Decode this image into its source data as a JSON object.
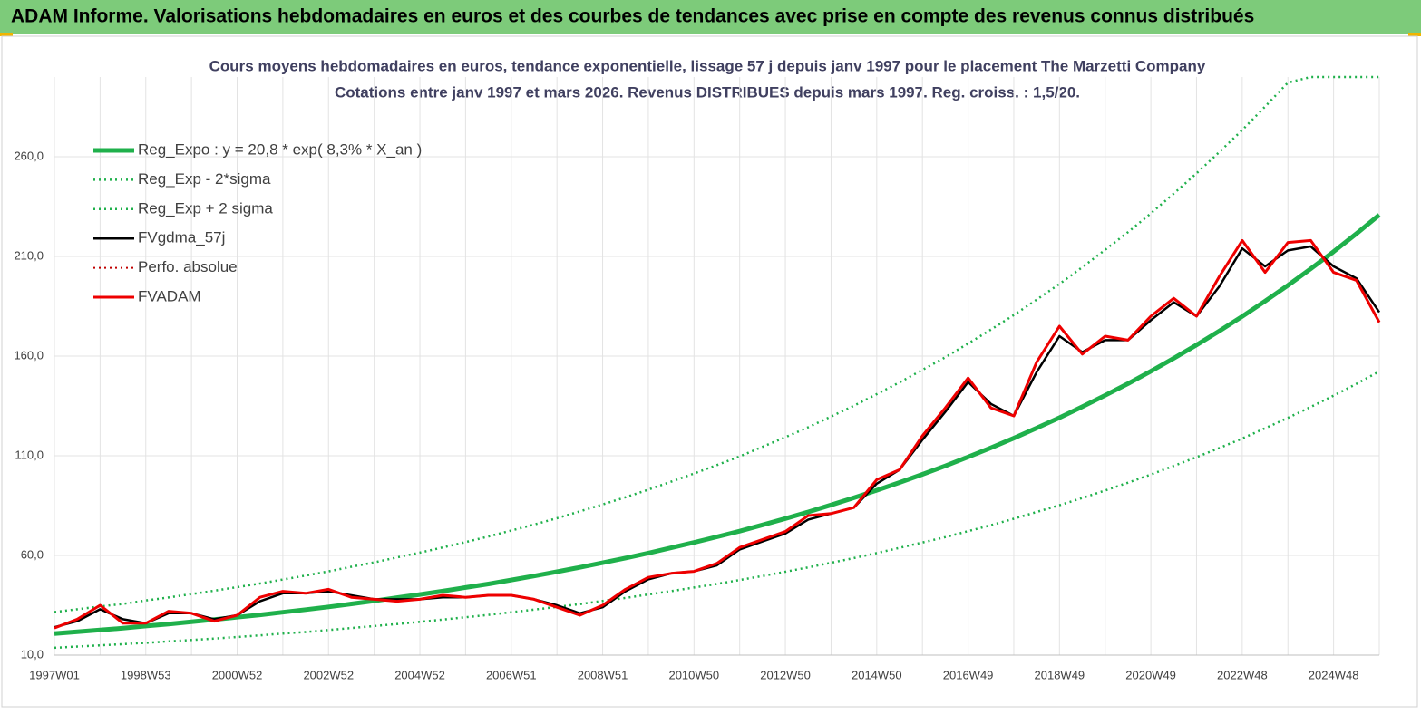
{
  "header": {
    "title": "ADAM Informe. Valorisations hebdomadaires en euros et des courbes de tendances avec prise en compte des revenus connus distribués"
  },
  "chart_data": {
    "type": "line",
    "title": "Cours moyens hebdomadaires en euros, tendance exponentielle, lissage 57 j depuis janv 1997 pour le placement The Marzetti Company",
    "subtitle": "Cotations entre janv 1997 et mars 2026. Revenus DISTRIBUES depuis mars 1997. Reg. croiss. : 1,5/20.",
    "categories": [
      "1997W01",
      null,
      null,
      null,
      "1998W53",
      null,
      null,
      null,
      "2000W52",
      null,
      null,
      null,
      "2002W52",
      null,
      null,
      null,
      "2004W52",
      null,
      null,
      null,
      "2006W51",
      null,
      null,
      null,
      "2008W51",
      null,
      null,
      null,
      "2010W50",
      null,
      null,
      null,
      "2012W50",
      null,
      null,
      null,
      "2014W50",
      null,
      null,
      null,
      "2016W49",
      null,
      null,
      null,
      "2018W49",
      null,
      null,
      null,
      "2020W49",
      null,
      null,
      null,
      "2022W48",
      null,
      null,
      null,
      "2024W48",
      null,
      null
    ],
    "ylim": [
      10,
      300
    ],
    "yticks": [
      {
        "value": 10,
        "label": "10,0"
      },
      {
        "value": 60,
        "label": "60,0"
      },
      {
        "value": 110,
        "label": "110,0"
      },
      {
        "value": 160,
        "label": "160,0"
      },
      {
        "value": 210,
        "label": "210,0"
      },
      {
        "value": 260,
        "label": "260,0"
      }
    ],
    "grid": true,
    "legend": "upper left",
    "series": [
      {
        "name": "Reg_Expo : y = 20,8 * exp( 8,3% *  X_an )",
        "color": "#1fb04b",
        "style": "solid",
        "width": 5,
        "values": [
          20.8,
          21.7,
          22.6,
          23.5,
          24.6,
          25.6,
          26.7,
          27.8,
          29.0,
          30.2,
          31.5,
          32.8,
          34.2,
          35.7,
          37.2,
          38.8,
          40.4,
          42.1,
          43.9,
          45.7,
          47.7,
          49.7,
          51.8,
          54.0,
          56.3,
          58.7,
          61.2,
          63.8,
          66.5,
          69.3,
          72.2,
          75.3,
          78.5,
          81.8,
          85.3,
          88.9,
          92.7,
          96.6,
          100.7,
          104.9,
          109.4,
          114.0,
          118.8,
          123.9,
          129.1,
          134.6,
          140.3,
          146.2,
          152.4,
          158.9,
          165.6,
          172.6,
          179.9,
          187.6,
          195.5,
          203.8,
          212.4,
          221.4,
          230.8
        ]
      },
      {
        "name": "Reg_Exp - 2*sigma",
        "color": "#1fb04b",
        "style": "dotted",
        "width": 2.5,
        "values": [
          13.7,
          14.3,
          14.9,
          15.5,
          16.2,
          16.9,
          17.6,
          18.3,
          19.1,
          19.9,
          20.8,
          21.6,
          22.6,
          23.6,
          24.6,
          25.6,
          26.7,
          27.8,
          29.0,
          30.2,
          31.5,
          32.8,
          34.2,
          35.6,
          37.2,
          38.7,
          40.4,
          42.1,
          43.9,
          45.7,
          47.7,
          49.7,
          51.8,
          54.0,
          56.3,
          58.7,
          61.2,
          63.8,
          66.5,
          69.2,
          72.2,
          75.2,
          78.4,
          81.8,
          85.2,
          88.8,
          92.6,
          96.5,
          100.6,
          104.9,
          109.3,
          113.9,
          118.7,
          123.8,
          129.0,
          134.5,
          140.2,
          146.1,
          152.3
        ]
      },
      {
        "name": "Reg_Exp + 2 sigma",
        "color": "#1fb04b",
        "style": "dotted",
        "width": 2.5,
        "values": [
          31.6,
          33.0,
          34.4,
          35.7,
          37.4,
          38.9,
          40.6,
          42.3,
          44.1,
          45.9,
          47.9,
          49.9,
          52.0,
          54.3,
          56.5,
          59.0,
          61.4,
          64.0,
          66.7,
          69.5,
          72.5,
          75.5,
          78.7,
          82.1,
          85.6,
          89.2,
          93.0,
          97.0,
          101.1,
          105.3,
          109.7,
          114.5,
          119.3,
          124.3,
          129.7,
          135.1,
          140.9,
          146.8,
          153.1,
          159.4,
          166.3,
          173.3,
          180.6,
          188.3,
          196.2,
          204.6,
          213.3,
          222.2,
          231.6,
          241.5,
          251.7,
          262.4,
          273.4,
          285.2,
          297.2,
          300,
          300,
          300,
          300
        ]
      },
      {
        "name": "FVgdma_57j",
        "color": "#000000",
        "style": "solid",
        "width": 2.5,
        "values": [
          24,
          27,
          33,
          28,
          26,
          31,
          31,
          28,
          30,
          37,
          41,
          41,
          42,
          40,
          38,
          38,
          38,
          39,
          39,
          40,
          40,
          38,
          35,
          31,
          34,
          42,
          48,
          51,
          52,
          55,
          63,
          67,
          71,
          78,
          81,
          84,
          96,
          103,
          118,
          132,
          147,
          136,
          130,
          152,
          170,
          162,
          168,
          168,
          178,
          187,
          180,
          195,
          214,
          205,
          213,
          215,
          205,
          199,
          182
        ]
      },
      {
        "name": "Perfo. absolue",
        "color": "#c00000",
        "style": "dotted",
        "width": 2,
        "values": [
          23.6,
          28,
          35,
          26,
          26,
          32,
          31,
          27,
          30,
          39,
          42,
          41,
          43,
          39,
          38,
          37,
          38,
          40,
          39,
          40,
          40,
          38,
          34,
          30,
          35,
          43,
          49,
          51,
          52,
          56,
          64,
          68,
          72,
          80,
          81,
          84,
          98,
          103,
          120,
          134,
          149,
          134,
          130,
          157,
          175,
          161,
          170,
          168,
          180,
          189,
          180,
          200,
          218,
          202,
          217,
          218,
          202,
          198,
          177
        ]
      },
      {
        "name": "FVADAM",
        "color": "#ee0000",
        "style": "solid",
        "width": 3,
        "values": [
          23.6,
          28,
          35,
          26,
          26,
          32,
          31,
          27,
          30,
          39,
          42,
          41,
          43,
          39,
          38,
          37,
          38,
          40,
          39,
          40,
          40,
          38,
          34,
          30,
          35,
          43,
          49,
          51,
          52,
          56,
          64,
          68,
          72,
          80,
          81,
          84,
          98,
          103,
          120,
          134,
          149,
          134,
          130,
          157,
          175,
          161,
          170,
          168,
          180,
          189,
          180,
          200,
          218,
          202,
          217,
          218,
          202,
          198,
          177
        ]
      }
    ]
  }
}
